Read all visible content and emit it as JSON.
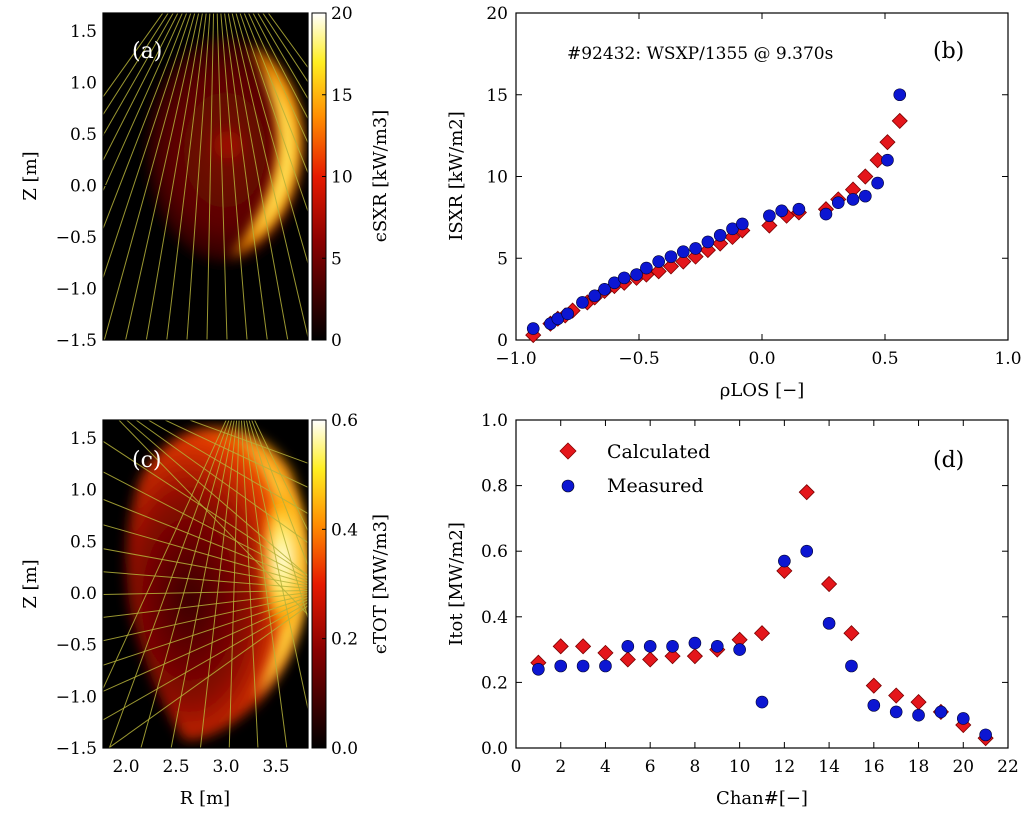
{
  "figure": {
    "panel_a": {
      "tag": "(a)",
      "ylabel": "Z [m]",
      "yticks": [
        "1.5",
        "1.0",
        "0.5",
        "0.0",
        "−0.5",
        "−1.0",
        "−1.5"
      ],
      "colorbar": {
        "label": "ϵSXR [kW/m3]",
        "ticks": [
          "20",
          "15",
          "10",
          "5",
          "0"
        ],
        "range": [
          0,
          20
        ]
      }
    },
    "panel_c": {
      "tag": "(c)",
      "ylabel": "Z [m]",
      "xlabel": "R [m]",
      "yticks": [
        "1.5",
        "1.0",
        "0.5",
        "0.0",
        "−0.5",
        "−1.0",
        "−1.5"
      ],
      "xticks": [
        "2.0",
        "2.5",
        "3.0",
        "3.5"
      ],
      "colorbar": {
        "label": "ϵTOT [MW/m3]",
        "ticks": [
          "0.6",
          "0.4",
          "0.2",
          "0.0"
        ],
        "range": [
          0,
          0.6
        ]
      }
    },
    "colors": {
      "calculated": "#e4161b",
      "measured": "#0c16d2",
      "los_lines": "#b5b23a"
    }
  },
  "chart_data": [
    {
      "type": "scatter",
      "panel": "(b)",
      "annotation": "#92432: WSXP/1355 @ 9.370s",
      "xlabel": "ρLOS [−]",
      "ylabel": "ISXR [kW/m2]",
      "xlim": [
        -1.0,
        1.0
      ],
      "ylim": [
        0,
        20
      ],
      "xticks": [
        "−1.0",
        "−0.5",
        "0.0",
        "0.5",
        "1.0"
      ],
      "yticks": [
        "0",
        "5",
        "10",
        "15",
        "20"
      ],
      "series": [
        {
          "marker": "diamond",
          "points": [
            [
              -0.93,
              0.3
            ],
            [
              -0.86,
              1.0
            ],
            [
              -0.83,
              1.3
            ],
            [
              -0.8,
              1.5
            ],
            [
              -0.77,
              1.8
            ],
            [
              -0.71,
              2.3
            ],
            [
              -0.68,
              2.6
            ],
            [
              -0.64,
              3.0
            ],
            [
              -0.6,
              3.3
            ],
            [
              -0.56,
              3.5
            ],
            [
              -0.51,
              3.8
            ],
            [
              -0.47,
              4.0
            ],
            [
              -0.42,
              4.2
            ],
            [
              -0.37,
              4.5
            ],
            [
              -0.32,
              4.8
            ],
            [
              -0.27,
              5.1
            ],
            [
              -0.22,
              5.5
            ],
            [
              -0.17,
              5.9
            ],
            [
              -0.12,
              6.3
            ],
            [
              -0.08,
              6.7
            ],
            [
              0.03,
              7.0
            ],
            [
              0.1,
              7.6
            ],
            [
              0.15,
              7.8
            ],
            [
              0.26,
              8.0
            ],
            [
              0.31,
              8.6
            ],
            [
              0.37,
              9.2
            ],
            [
              0.42,
              10.0
            ],
            [
              0.47,
              11.0
            ],
            [
              0.51,
              12.1
            ],
            [
              0.56,
              13.4
            ]
          ]
        },
        {
          "marker": "circle",
          "points": [
            [
              -0.93,
              0.7
            ],
            [
              -0.86,
              1.0
            ],
            [
              -0.83,
              1.3
            ],
            [
              -0.79,
              1.6
            ],
            [
              -0.73,
              2.3
            ],
            [
              -0.68,
              2.7
            ],
            [
              -0.64,
              3.1
            ],
            [
              -0.6,
              3.5
            ],
            [
              -0.56,
              3.8
            ],
            [
              -0.51,
              4.0
            ],
            [
              -0.47,
              4.4
            ],
            [
              -0.42,
              4.8
            ],
            [
              -0.37,
              5.1
            ],
            [
              -0.32,
              5.4
            ],
            [
              -0.27,
              5.6
            ],
            [
              -0.22,
              6.0
            ],
            [
              -0.17,
              6.4
            ],
            [
              -0.12,
              6.8
            ],
            [
              -0.08,
              7.1
            ],
            [
              0.03,
              7.6
            ],
            [
              0.08,
              7.9
            ],
            [
              0.15,
              8.0
            ],
            [
              0.26,
              7.7
            ],
            [
              0.31,
              8.4
            ],
            [
              0.37,
              8.6
            ],
            [
              0.42,
              8.8
            ],
            [
              0.47,
              9.6
            ],
            [
              0.51,
              11.0
            ],
            [
              0.56,
              15.0
            ]
          ]
        }
      ]
    },
    {
      "type": "scatter",
      "panel": "(d)",
      "xlabel": "Chan#[−]",
      "ylabel": "Itot [MW/m2]",
      "xlim": [
        0,
        22
      ],
      "ylim": [
        0,
        1.0
      ],
      "xticks": [
        "0",
        "2",
        "4",
        "6",
        "8",
        "10",
        "12",
        "14",
        "16",
        "18",
        "20",
        "22"
      ],
      "yticks": [
        "0.0",
        "0.2",
        "0.4",
        "0.6",
        "0.8",
        "1.0"
      ],
      "legend_position": "top-left",
      "series": [
        {
          "name": "Calculated",
          "marker": "diamond",
          "x": [
            1,
            2,
            3,
            4,
            5,
            6,
            7,
            8,
            9,
            10,
            11,
            12,
            13,
            14,
            15,
            16,
            17,
            18,
            19,
            20,
            21
          ],
          "values": [
            0.26,
            0.31,
            0.31,
            0.29,
            0.27,
            0.27,
            0.28,
            0.28,
            0.3,
            0.33,
            0.35,
            0.54,
            0.78,
            0.5,
            0.35,
            0.19,
            0.16,
            0.14,
            0.11,
            0.07,
            0.03
          ]
        },
        {
          "name": "Measured",
          "marker": "circle",
          "x": [
            1,
            2,
            3,
            4,
            5,
            6,
            7,
            8,
            9,
            10,
            11,
            12,
            13,
            14,
            15,
            16,
            17,
            18,
            19,
            20,
            21
          ],
          "values": [
            0.24,
            0.25,
            0.25,
            0.25,
            0.31,
            0.31,
            0.31,
            0.32,
            0.31,
            0.3,
            0.14,
            0.57,
            0.6,
            0.38,
            0.25,
            0.13,
            0.11,
            0.1,
            0.11,
            0.09,
            0.04
          ]
        }
      ]
    }
  ]
}
